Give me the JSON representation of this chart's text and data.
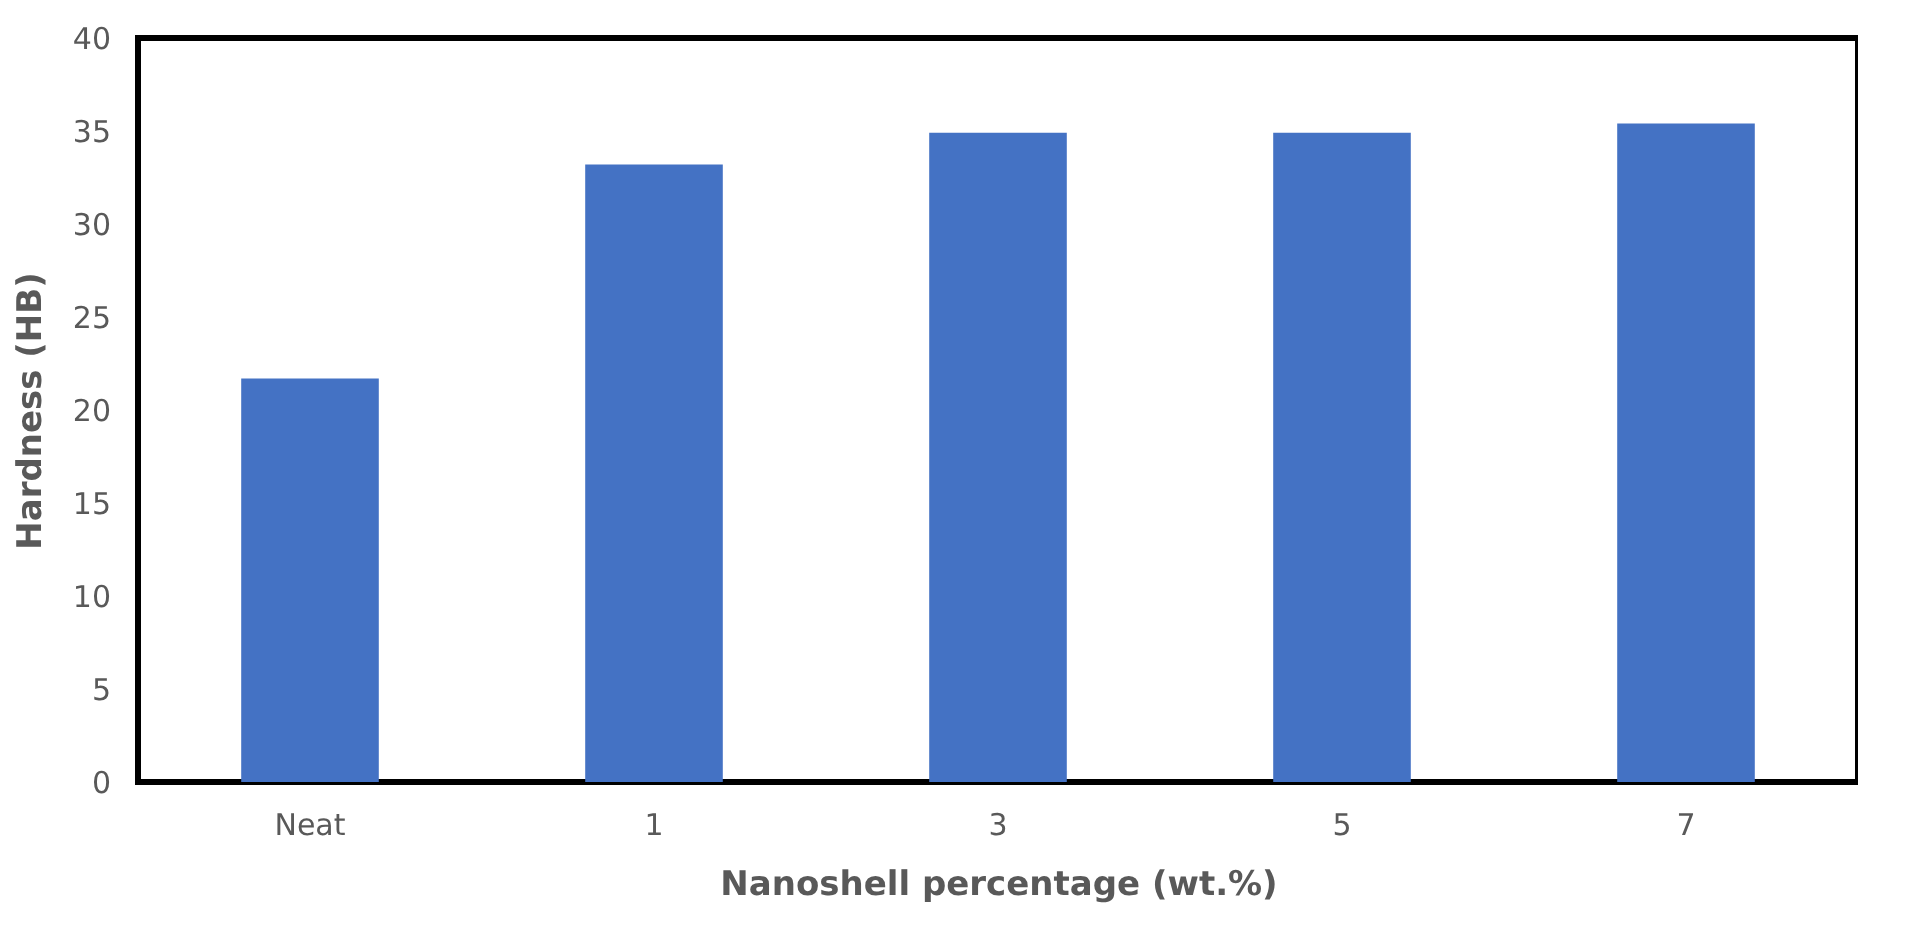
{
  "chart_data": {
    "type": "bar",
    "xlabel": "Nanoshell  percentage (wt.%)",
    "ylabel": "Hardness  (HB)",
    "categories": [
      "Neat",
      "1",
      "3",
      "5",
      "7"
    ],
    "values": [
      21.7,
      33.2,
      34.9,
      34.9,
      35.4
    ],
    "color": "#4472c4",
    "ylim": [
      0,
      40
    ],
    "yticks": [
      0,
      5,
      10,
      15,
      20,
      25,
      30,
      35,
      40
    ],
    "grid": false
  }
}
